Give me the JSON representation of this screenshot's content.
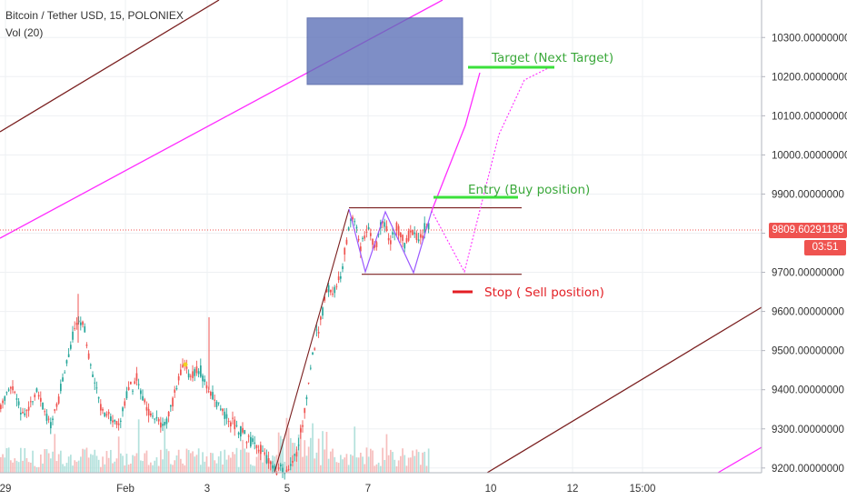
{
  "legend": {
    "symbol": "Bitcoin / Tether USD, 15, POLONIEX",
    "indicator": "Vol (20)"
  },
  "badges": {
    "last_price": "9809.60291185",
    "countdown": "03:51",
    "last_price_color": "#ef5350",
    "countdown_color": "#ef5350"
  },
  "annotations": {
    "target": "Target (Next Target)",
    "entry": "Entry (Buy position)",
    "stop": "Stop ( Sell position)"
  },
  "colors": {
    "up": "#26a69a",
    "down": "#ef5350",
    "brown_line": "#7a1f1f",
    "magenta": "#ff2cff",
    "green": "#3be03b",
    "red_marker": "#e31e24",
    "zone_fill": "#5b6fb7",
    "grid": "#eef0f3",
    "axis_text": "#333333"
  },
  "chart_data": {
    "type": "candlestick",
    "title": "Bitcoin / Tether USD, 15, POLONIEX",
    "indicator": "Vol (20)",
    "ylim": [
      9180,
      10450
    ],
    "yticks": [
      9200,
      9300,
      9400,
      9500,
      9600,
      9700,
      9800,
      9900,
      10000,
      10100,
      10200,
      10300
    ],
    "ytick_labels": [
      "9200.00000000",
      "9300.00000000",
      "9400.00000000",
      "9500.00000000",
      "9600.00000000",
      "9700.00000000",
      "9800.00000000",
      "9900.00000000",
      "10000.00000000",
      "10100.00000000",
      "10200.00000000",
      "10300.00000000"
    ],
    "xtick_labels": [
      "29",
      "Feb",
      "3",
      "5",
      "7",
      "10",
      "12",
      "15:00"
    ],
    "last_price": 9809.60291185,
    "levels": {
      "range_top": 9865,
      "range_bottom": 9695,
      "entry": 9890,
      "target": 10230,
      "stop": 9670
    },
    "target_zone": {
      "price_top": 10350,
      "price_bottom": 10180
    },
    "ohlc_path": [
      [
        0,
        9360
      ],
      [
        12,
        9410
      ],
      [
        25,
        9330
      ],
      [
        40,
        9400
      ],
      [
        55,
        9300
      ],
      [
        70,
        9440
      ],
      [
        82,
        9560
      ],
      [
        90,
        9580
      ],
      [
        100,
        9450
      ],
      [
        110,
        9360
      ],
      [
        120,
        9330
      ],
      [
        130,
        9310
      ],
      [
        140,
        9400
      ],
      [
        150,
        9430
      ],
      [
        158,
        9360
      ],
      [
        170,
        9330
      ],
      [
        180,
        9300
      ],
      [
        190,
        9380
      ],
      [
        200,
        9460
      ],
      [
        210,
        9440
      ],
      [
        220,
        9450
      ],
      [
        232,
        9380
      ],
      [
        245,
        9340
      ],
      [
        258,
        9310
      ],
      [
        270,
        9280
      ],
      [
        285,
        9250
      ],
      [
        300,
        9200
      ],
      [
        315,
        9190
      ],
      [
        325,
        9230
      ],
      [
        335,
        9350
      ],
      [
        342,
        9480
      ],
      [
        350,
        9560
      ],
      [
        358,
        9650
      ],
      [
        366,
        9660
      ],
      [
        374,
        9690
      ],
      [
        382,
        9800
      ],
      [
        388,
        9850
      ],
      [
        396,
        9760
      ],
      [
        404,
        9820
      ],
      [
        412,
        9760
      ],
      [
        420,
        9840
      ],
      [
        428,
        9780
      ],
      [
        436,
        9820
      ],
      [
        444,
        9770
      ],
      [
        452,
        9810
      ],
      [
        460,
        9780
      ],
      [
        468,
        9820
      ],
      [
        472,
        9810
      ]
    ]
  }
}
